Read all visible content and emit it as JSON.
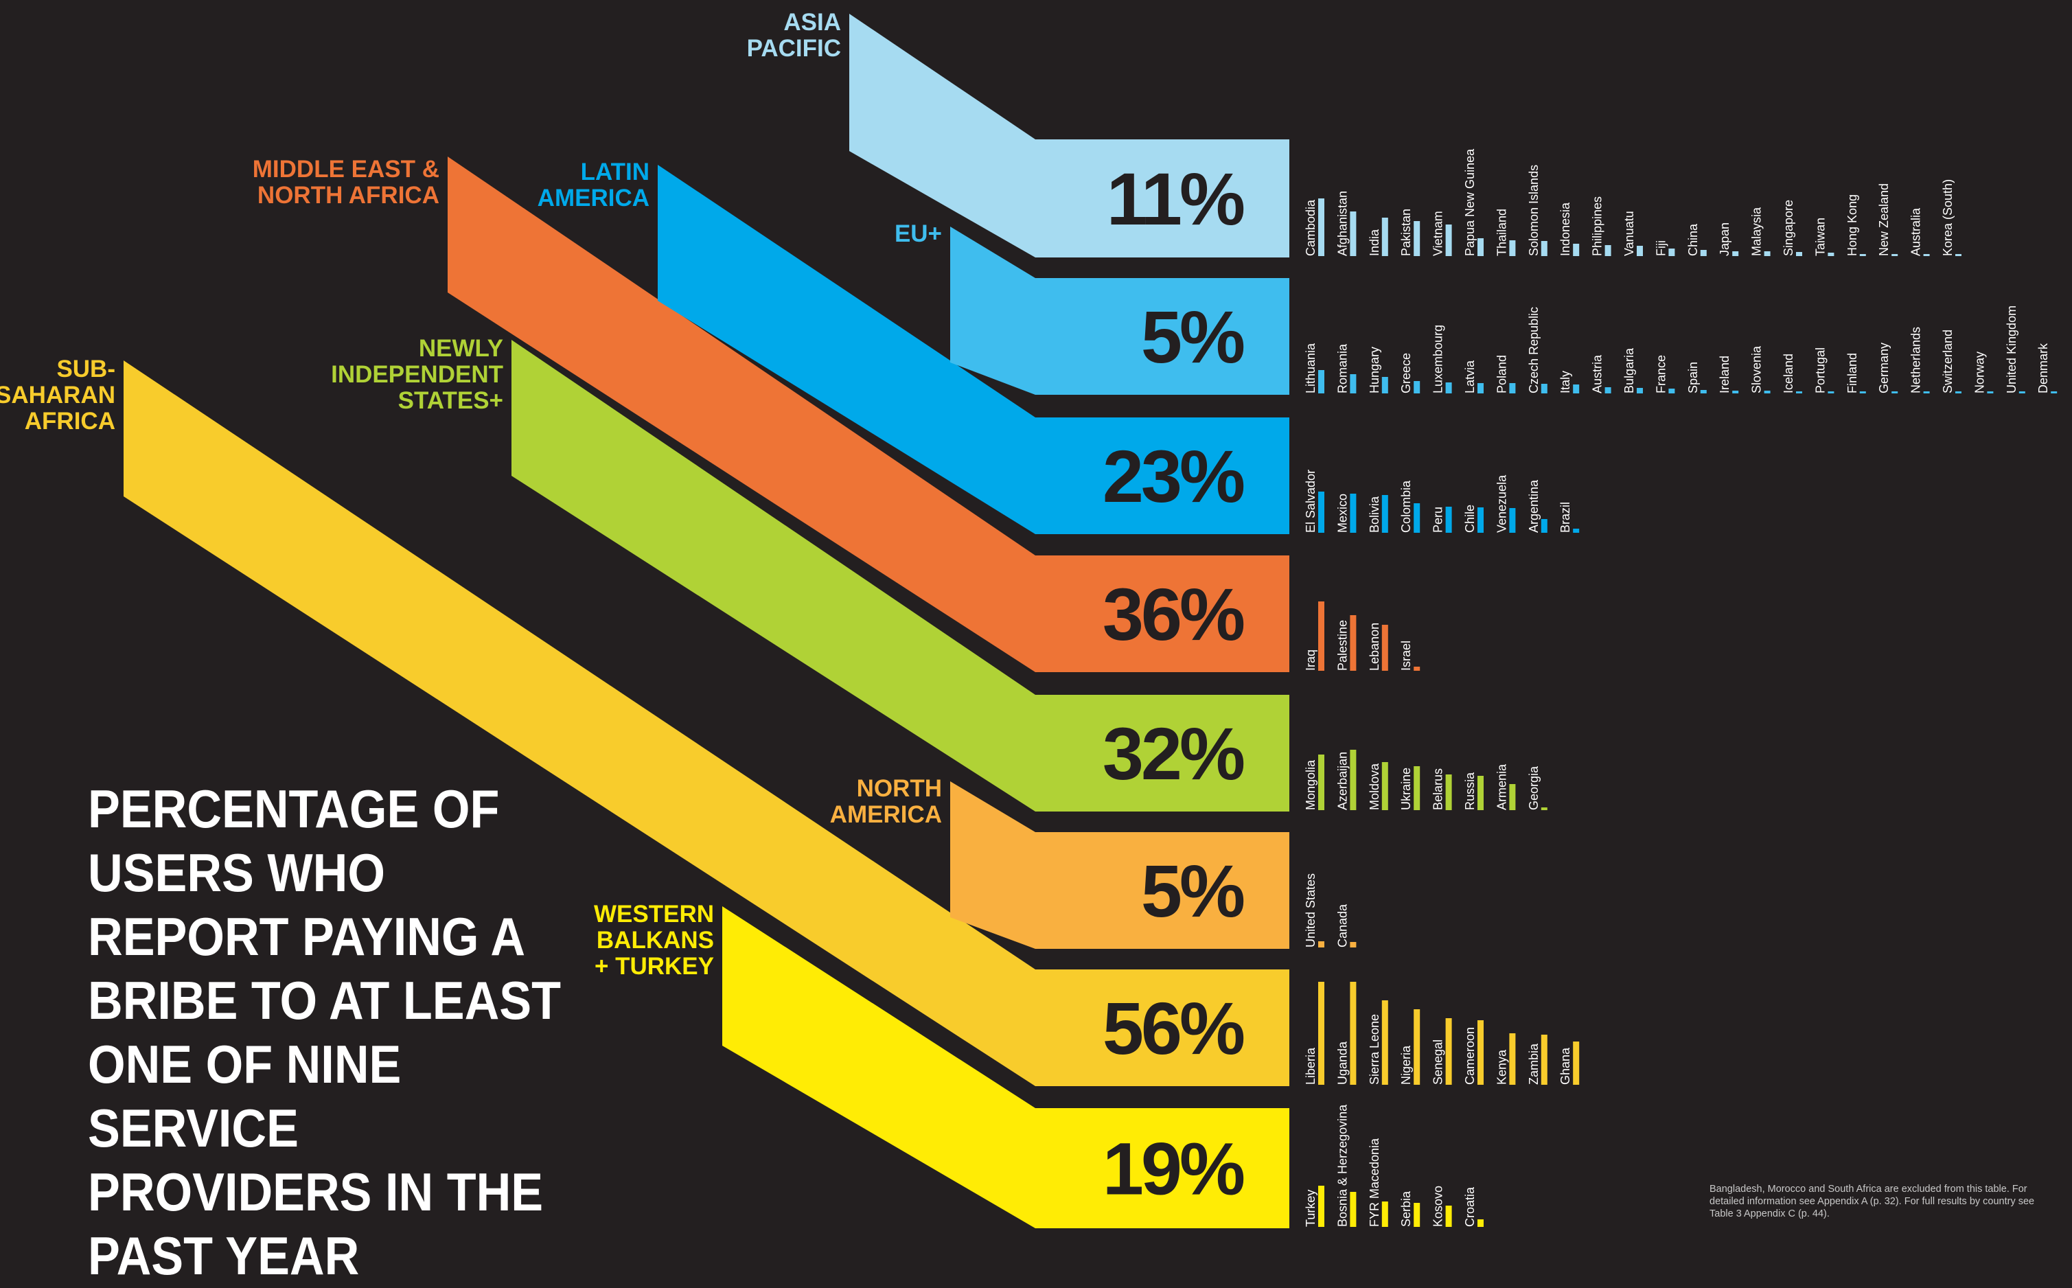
{
  "title": "PERCENTAGE OF USERS WHO REPORT PAYING A BRIBE TO AT LEAST ONE OF NINE SERVICE PROVIDERS IN THE PAST YEAR",
  "footnote": "Bangladesh, Morocco and South Africa are excluded from this table. For detailed information see Appendix A (p. 32). For full results by country see Table 3 Appendix C (p. 44).",
  "colors": {
    "background": "#231f20",
    "asia_pacific": "#a6dbf1",
    "eu_plus": "#3fbdee",
    "latin_america": "#00a9ea",
    "mena": "#ee7436",
    "nis": "#b0d236",
    "north_america": "#f9b040",
    "ssa": "#f8cc2c",
    "wb_turkey": "#ffec05"
  },
  "chart_data": {
    "type": "bar",
    "title": "PERCENTAGE OF USERS WHO REPORT PAYING A BRIBE TO AT LEAST ONE OF NINE SERVICE PROVIDERS IN THE PAST YEAR",
    "grid": false,
    "regions": [
      {
        "label": [
          "ASIA",
          "PACIFIC"
        ],
        "percent": 11,
        "pct_label": "11%",
        "color": "#a6dbf1",
        "countries": [
          "Cambodia",
          "Afghanistan",
          "India",
          "Pakistan",
          "Vietnam",
          "Papua New Guinea",
          "Thailand",
          "Solomon Islands",
          "Indonesia",
          "Philippines",
          "Vanuatu",
          "Fiji",
          "China",
          "Japan",
          "Malaysia",
          "Singapore",
          "Taiwan",
          "Hong Kong",
          "New Zealand",
          "Australia",
          "Korea (South)"
        ],
        "values": [
          84,
          65,
          56,
          51,
          46,
          26,
          23,
          22,
          18,
          16,
          15,
          11,
          9,
          7,
          7,
          6,
          5,
          3,
          2,
          1,
          1
        ]
      },
      {
        "label": [
          "EU+"
        ],
        "percent": 5,
        "pct_label": "5%",
        "color": "#3fbdee",
        "countries": [
          "Lithuania",
          "Romania",
          "Hungary",
          "Greece",
          "Luxembourg",
          "Latvia",
          "Poland",
          "Czech Republic",
          "Italy",
          "Austria",
          "Bulgaria",
          "France",
          "Spain",
          "Ireland",
          "Slovenia",
          "Iceland",
          "Portugal",
          "Finland",
          "Germany",
          "Netherlands",
          "Switzerland",
          "Norway",
          "United Kingdom",
          "Denmark"
        ],
        "values": [
          34,
          28,
          24,
          18,
          16,
          15,
          15,
          14,
          13,
          9,
          8,
          7,
          5,
          4,
          4,
          3,
          3,
          2,
          2,
          2,
          1,
          1,
          1,
          1
        ]
      },
      {
        "label": [
          "LATIN",
          "AMERICA"
        ],
        "percent": 23,
        "pct_label": "23%",
        "color": "#00a9ea",
        "countries": [
          "El Salvador",
          "Mexico",
          "Bolivia",
          "Colombia",
          "Peru",
          "Chile",
          "Venezuela",
          "Argentina",
          "Brazil"
        ],
        "values": [
          60,
          57,
          55,
          43,
          38,
          37,
          36,
          20,
          6
        ]
      },
      {
        "label": [
          "MIDDLE EAST &",
          "NORTH AFRICA"
        ],
        "percent": 36,
        "pct_label": "36%",
        "color": "#ee7436",
        "countries": [
          "Iraq",
          "Palestine",
          "Lebanon",
          "Israel"
        ],
        "values": [
          101,
          81,
          67,
          6
        ]
      },
      {
        "label": [
          "NEWLY",
          "INDEPENDENT",
          "STATES+"
        ],
        "percent": 32,
        "pct_label": "32%",
        "color": "#b0d236",
        "countries": [
          "Mongolia",
          "Azerbaijan",
          "Moldova",
          "Ukraine",
          "Belarus",
          "Russia",
          "Armenia",
          "Georgia"
        ],
        "values": [
          81,
          88,
          70,
          64,
          52,
          50,
          38,
          4
        ]
      },
      {
        "label": [
          "NORTH",
          "AMERICA"
        ],
        "percent": 5,
        "pct_label": "5%",
        "color": "#f9b040",
        "countries": [
          "United States",
          "Canada"
        ],
        "values": [
          9,
          8
        ]
      },
      {
        "label": [
          "SUB-",
          "SAHARAN",
          "AFRICA"
        ],
        "percent": 56,
        "pct_label": "56%",
        "color": "#f8cc2c",
        "countries": [
          "Liberia",
          "Uganda",
          "Sierra Leone",
          "Nigeria",
          "Senegal",
          "Cameroon",
          "Kenya",
          "Zambia",
          "Ghana"
        ],
        "values": [
          150,
          150,
          123,
          110,
          97,
          94,
          75,
          73,
          63
        ]
      },
      {
        "label": [
          "WESTERN",
          "BALKANS",
          "+ TURKEY"
        ],
        "percent": 19,
        "pct_label": "19%",
        "color": "#ffec05",
        "countries": [
          "Turkey",
          "Bosnia & Herzegovina",
          "FYR Macedonia",
          "Serbia",
          "Kosovo",
          "Croatia"
        ],
        "values": [
          60,
          51,
          37,
          35,
          31,
          11
        ]
      }
    ]
  }
}
